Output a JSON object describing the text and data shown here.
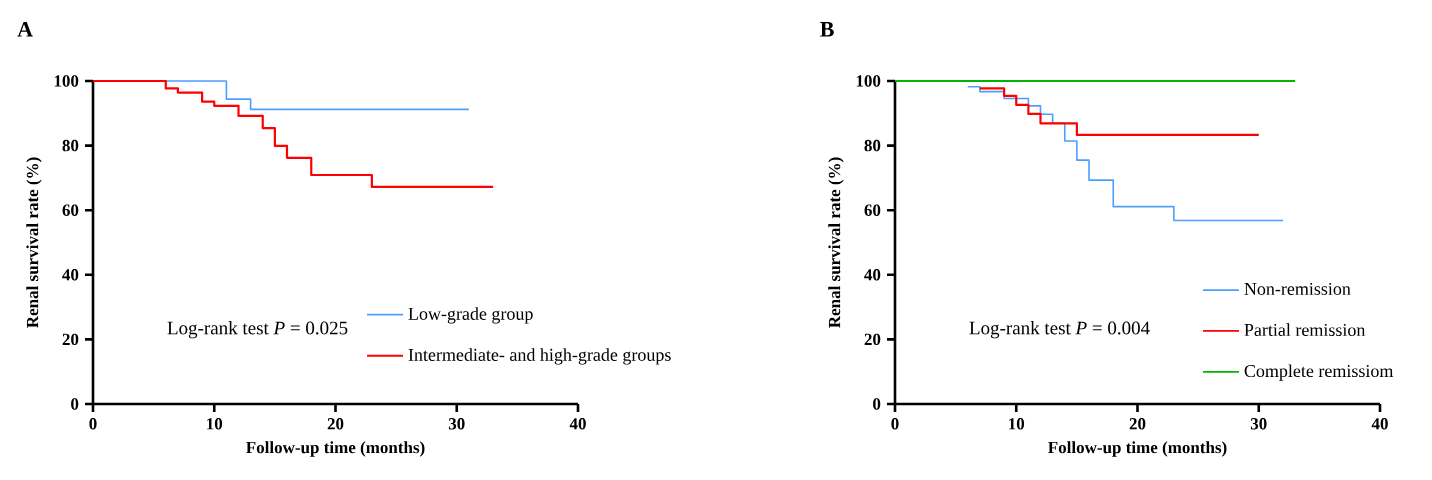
{
  "chart_data": [
    {
      "type": "step",
      "title": "A",
      "xlabel": "Follow-up time (months)",
      "ylabel": "Renal survival rate (%)",
      "xlim": [
        0,
        40
      ],
      "ylim": [
        0,
        100
      ],
      "xticks": [
        0,
        10,
        20,
        30,
        40
      ],
      "yticks": [
        0,
        20,
        40,
        60,
        80,
        100
      ],
      "legend": "bottom right",
      "grid": false,
      "annotations": [
        "Log-rank test *P* = 0.025"
      ],
      "series": [
        {
          "name": "Low-grade group",
          "color": "#4d9fff",
          "x": [
            0,
            11,
            13,
            31
          ],
          "values": [
            100,
            94.4,
            91.2,
            91.2
          ]
        },
        {
          "name": "Intermediate- and high-grade groups",
          "color": "#ff0000",
          "x": [
            0,
            6,
            7,
            9,
            10,
            12,
            14,
            15,
            16,
            18,
            23,
            33
          ],
          "values": [
            100,
            97.7,
            96.4,
            93.6,
            92.3,
            89.2,
            85.4,
            79.9,
            76.2,
            70.9,
            67.2,
            67.2
          ]
        }
      ]
    },
    {
      "type": "step",
      "title": "B",
      "xlabel": "Follow-up time (months)",
      "ylabel": "Renal survival rate (%)",
      "xlim": [
        0,
        40
      ],
      "ylim": [
        0,
        100
      ],
      "xticks": [
        0,
        10,
        20,
        30,
        40
      ],
      "yticks": [
        0,
        20,
        40,
        60,
        80,
        100
      ],
      "legend": "right",
      "grid": false,
      "annotations": [
        "Log-rank test *P* = 0.004"
      ],
      "series": [
        {
          "name": "Non-remission",
          "color": "#4d9fff",
          "x": [
            6,
            7,
            9,
            11,
            12,
            13,
            14,
            15,
            16,
            18,
            23,
            32
          ],
          "values": [
            98.2,
            96.7,
            94.6,
            92.3,
            89.7,
            86.9,
            81.4,
            75.5,
            69.3,
            61.1,
            56.8,
            56.8
          ]
        },
        {
          "name": "Partial remission",
          "color": "#ff0000",
          "x": [
            7,
            9,
            10,
            11,
            12,
            15,
            30
          ],
          "values": [
            97.7,
            95.4,
            92.6,
            89.8,
            86.9,
            83.3,
            83.3
          ]
        },
        {
          "name": "Complete remissiom",
          "color": "#00b400",
          "x": [
            0,
            33
          ],
          "values": [
            100,
            100
          ]
        }
      ]
    }
  ]
}
